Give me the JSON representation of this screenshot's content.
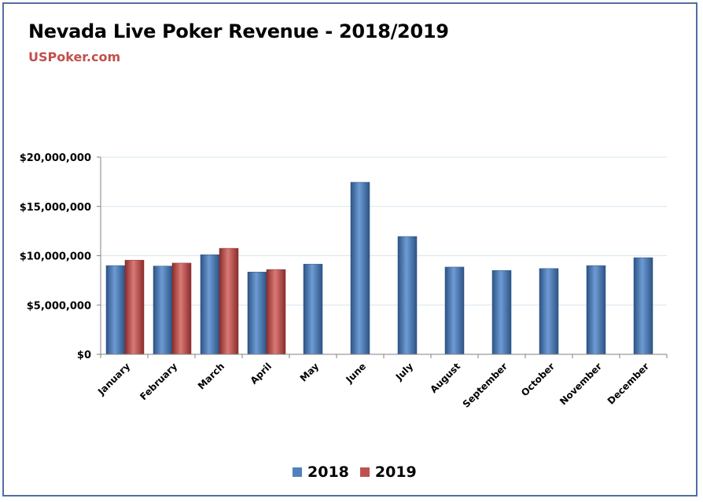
{
  "header": {
    "title": "Nevada Live Poker Revenue - 2018/2019",
    "subtitle": "USPoker.com"
  },
  "colors": {
    "series_2018": "#4f81bd",
    "series_2019": "#c0504d",
    "subtitle": "#c0504d",
    "frame": "#4f6fa3",
    "gridline": "#d7e6ef"
  },
  "chart_data": {
    "type": "bar",
    "title": "Nevada Live Poker Revenue - 2018/2019",
    "categories": [
      "January",
      "February",
      "March",
      "April",
      "May",
      "June",
      "July",
      "August",
      "September",
      "October",
      "November",
      "December"
    ],
    "series": [
      {
        "name": "2018",
        "values": [
          9000000,
          8950000,
          10100000,
          8350000,
          9150000,
          17450000,
          11950000,
          8850000,
          8500000,
          8700000,
          9000000,
          9800000
        ]
      },
      {
        "name": "2019",
        "values": [
          9550000,
          9250000,
          10750000,
          8600000,
          null,
          null,
          null,
          null,
          null,
          null,
          null,
          null
        ]
      }
    ],
    "yticks": [
      "$0",
      "$5,000,000",
      "$10,000,000",
      "$15,000,000",
      "$20,000,000"
    ],
    "ylim": [
      0,
      20000000
    ],
    "grid": true,
    "legend": "bottom"
  }
}
